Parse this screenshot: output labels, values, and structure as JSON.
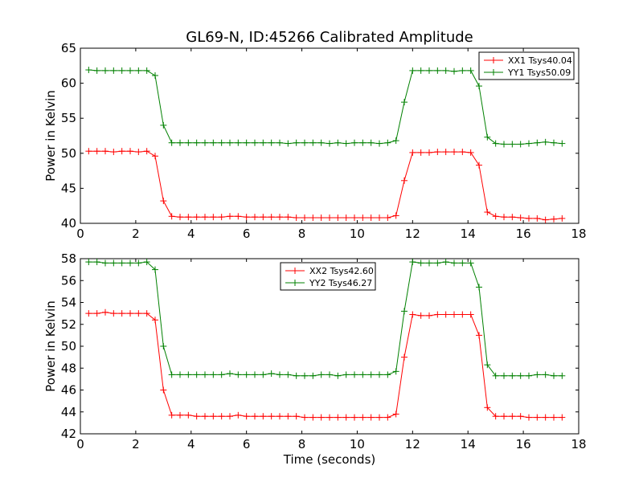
{
  "chart_data": [
    {
      "type": "line",
      "title": "GL69-N, ID:45266 Calibrated Amplitude",
      "xlabel": "",
      "ylabel": "Power in Kelvin",
      "xlim": [
        0,
        18
      ],
      "ylim": [
        40,
        65
      ],
      "xticks": [
        "0",
        "2",
        "4",
        "6",
        "8",
        "10",
        "12",
        "14",
        "16",
        "18"
      ],
      "yticks": [
        "40",
        "45",
        "50",
        "55",
        "60",
        "65"
      ],
      "grid": false,
      "legend_position": "top-right",
      "series": [
        {
          "name": "XX1 Tsys40.04",
          "color": "#ff0000",
          "x": [
            0.3,
            0.6,
            0.9,
            1.2,
            1.5,
            1.8,
            2.1,
            2.4,
            2.7,
            3.0,
            3.3,
            3.6,
            3.9,
            4.2,
            4.5,
            4.8,
            5.1,
            5.4,
            5.7,
            6.0,
            6.3,
            6.6,
            6.9,
            7.2,
            7.5,
            7.8,
            8.1,
            8.4,
            8.7,
            9.0,
            9.3,
            9.6,
            9.9,
            10.2,
            10.5,
            10.8,
            11.1,
            11.4,
            11.7,
            12.0,
            12.3,
            12.6,
            12.9,
            13.2,
            13.5,
            13.8,
            14.1,
            14.4,
            14.7,
            15.0,
            15.3,
            15.6,
            15.9,
            16.2,
            16.5,
            16.8,
            17.1,
            17.4
          ],
          "y": [
            50.3,
            50.3,
            50.3,
            50.2,
            50.3,
            50.3,
            50.2,
            50.3,
            49.6,
            43.2,
            41.0,
            40.9,
            40.9,
            40.9,
            40.9,
            40.9,
            40.9,
            41.0,
            41.0,
            40.9,
            40.9,
            40.9,
            40.9,
            40.9,
            40.9,
            40.8,
            40.8,
            40.8,
            40.8,
            40.8,
            40.8,
            40.8,
            40.8,
            40.8,
            40.8,
            40.8,
            40.8,
            41.1,
            46.1,
            50.1,
            50.1,
            50.1,
            50.2,
            50.2,
            50.2,
            50.2,
            50.1,
            48.3,
            41.6,
            41.0,
            40.9,
            40.9,
            40.8,
            40.7,
            40.7,
            40.5,
            40.6,
            40.7
          ]
        },
        {
          "name": "YY1 Tsys50.09",
          "color": "#008000",
          "x": [
            0.3,
            0.6,
            0.9,
            1.2,
            1.5,
            1.8,
            2.1,
            2.4,
            2.7,
            3.0,
            3.3,
            3.6,
            3.9,
            4.2,
            4.5,
            4.8,
            5.1,
            5.4,
            5.7,
            6.0,
            6.3,
            6.6,
            6.9,
            7.2,
            7.5,
            7.8,
            8.1,
            8.4,
            8.7,
            9.0,
            9.3,
            9.6,
            9.9,
            10.2,
            10.5,
            10.8,
            11.1,
            11.4,
            11.7,
            12.0,
            12.3,
            12.6,
            12.9,
            13.2,
            13.5,
            13.8,
            14.1,
            14.4,
            14.7,
            15.0,
            15.3,
            15.6,
            15.9,
            16.2,
            16.5,
            16.8,
            17.1,
            17.4
          ],
          "y": [
            61.9,
            61.8,
            61.8,
            61.8,
            61.8,
            61.8,
            61.8,
            61.8,
            61.1,
            54.0,
            51.5,
            51.5,
            51.5,
            51.5,
            51.5,
            51.5,
            51.5,
            51.5,
            51.5,
            51.5,
            51.5,
            51.5,
            51.5,
            51.5,
            51.4,
            51.5,
            51.5,
            51.5,
            51.5,
            51.4,
            51.5,
            51.4,
            51.5,
            51.5,
            51.5,
            51.4,
            51.5,
            51.8,
            57.3,
            61.8,
            61.8,
            61.8,
            61.8,
            61.8,
            61.7,
            61.8,
            61.8,
            59.6,
            52.3,
            51.4,
            51.3,
            51.3,
            51.3,
            51.4,
            51.5,
            51.6,
            51.5,
            51.4
          ]
        }
      ]
    },
    {
      "type": "line",
      "title": "",
      "xlabel": "Time (seconds)",
      "ylabel": "Power in Kelvin",
      "xlim": [
        0,
        18
      ],
      "ylim": [
        42,
        58
      ],
      "xticks": [
        "0",
        "2",
        "4",
        "6",
        "8",
        "10",
        "12",
        "14",
        "16",
        "18"
      ],
      "yticks": [
        "42",
        "44",
        "46",
        "48",
        "50",
        "52",
        "54",
        "56",
        "58"
      ],
      "grid": false,
      "legend_position": "top-center",
      "series": [
        {
          "name": "XX2 Tsys42.60",
          "color": "#ff0000",
          "x": [
            0.3,
            0.6,
            0.9,
            1.2,
            1.5,
            1.8,
            2.1,
            2.4,
            2.7,
            3.0,
            3.3,
            3.6,
            3.9,
            4.2,
            4.5,
            4.8,
            5.1,
            5.4,
            5.7,
            6.0,
            6.3,
            6.6,
            6.9,
            7.2,
            7.5,
            7.8,
            8.1,
            8.4,
            8.7,
            9.0,
            9.3,
            9.6,
            9.9,
            10.2,
            10.5,
            10.8,
            11.1,
            11.4,
            11.7,
            12.0,
            12.3,
            12.6,
            12.9,
            13.2,
            13.5,
            13.8,
            14.1,
            14.4,
            14.7,
            15.0,
            15.3,
            15.6,
            15.9,
            16.2,
            16.5,
            16.8,
            17.1,
            17.4
          ],
          "y": [
            53.0,
            53.0,
            53.1,
            53.0,
            53.0,
            53.0,
            53.0,
            53.0,
            52.4,
            46.0,
            43.7,
            43.7,
            43.7,
            43.6,
            43.6,
            43.6,
            43.6,
            43.6,
            43.7,
            43.6,
            43.6,
            43.6,
            43.6,
            43.6,
            43.6,
            43.6,
            43.5,
            43.5,
            43.5,
            43.5,
            43.5,
            43.5,
            43.5,
            43.5,
            43.5,
            43.5,
            43.5,
            43.8,
            49.0,
            52.9,
            52.8,
            52.8,
            52.9,
            52.9,
            52.9,
            52.9,
            52.9,
            51.0,
            44.4,
            43.6,
            43.6,
            43.6,
            43.6,
            43.5,
            43.5,
            43.5,
            43.5,
            43.5
          ]
        },
        {
          "name": "YY2 Tsys46.27",
          "color": "#008000",
          "x": [
            0.3,
            0.6,
            0.9,
            1.2,
            1.5,
            1.8,
            2.1,
            2.4,
            2.7,
            3.0,
            3.3,
            3.6,
            3.9,
            4.2,
            4.5,
            4.8,
            5.1,
            5.4,
            5.7,
            6.0,
            6.3,
            6.6,
            6.9,
            7.2,
            7.5,
            7.8,
            8.1,
            8.4,
            8.7,
            9.0,
            9.3,
            9.6,
            9.9,
            10.2,
            10.5,
            10.8,
            11.1,
            11.4,
            11.7,
            12.0,
            12.3,
            12.6,
            12.9,
            13.2,
            13.5,
            13.8,
            14.1,
            14.4,
            14.7,
            15.0,
            15.3,
            15.6,
            15.9,
            16.2,
            16.5,
            16.8,
            17.1,
            17.4
          ],
          "y": [
            57.7,
            57.7,
            57.6,
            57.6,
            57.6,
            57.6,
            57.6,
            57.7,
            57.0,
            50.0,
            47.4,
            47.4,
            47.4,
            47.4,
            47.4,
            47.4,
            47.4,
            47.5,
            47.4,
            47.4,
            47.4,
            47.4,
            47.5,
            47.4,
            47.4,
            47.3,
            47.3,
            47.3,
            47.4,
            47.4,
            47.3,
            47.4,
            47.4,
            47.4,
            47.4,
            47.4,
            47.4,
            47.7,
            53.2,
            57.7,
            57.6,
            57.6,
            57.6,
            57.7,
            57.6,
            57.6,
            57.6,
            55.4,
            48.3,
            47.3,
            47.3,
            47.3,
            47.3,
            47.3,
            47.4,
            47.4,
            47.3,
            47.3
          ]
        }
      ]
    }
  ]
}
